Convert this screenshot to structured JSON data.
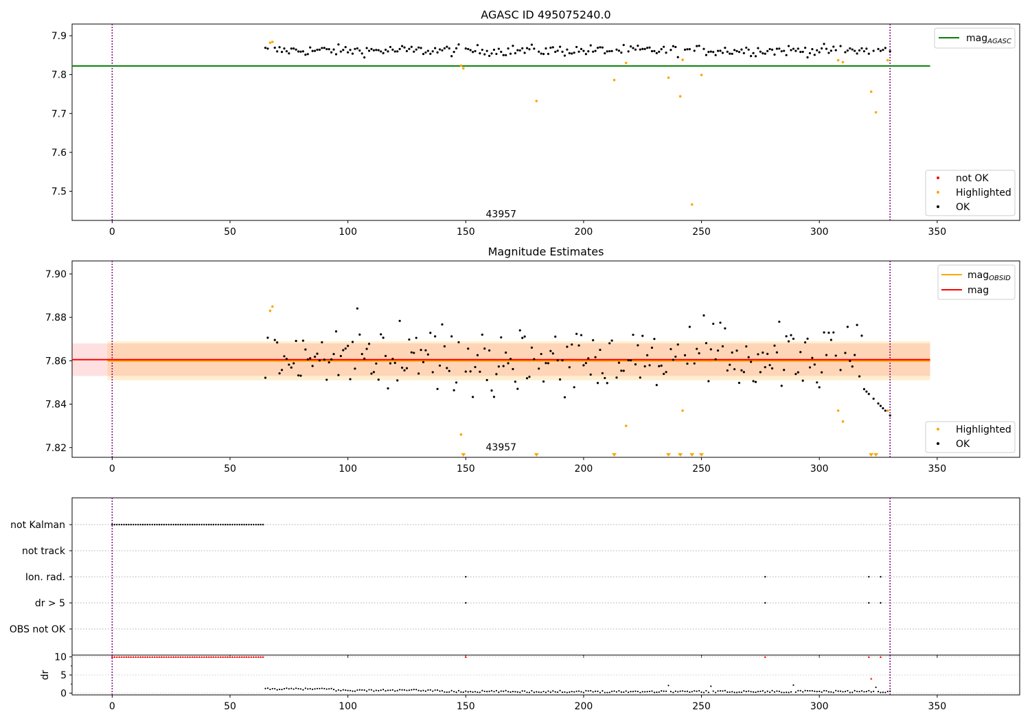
{
  "x_ticks": [
    0,
    50,
    100,
    150,
    200,
    250,
    300,
    350
  ],
  "chart_data": [
    {
      "type": "scatter",
      "title": "AGASC ID 495075240.0",
      "xlim": [
        -17,
        385
      ],
      "ylim": [
        7.425,
        7.93
      ],
      "yticks": [
        7.9,
        7.8,
        7.7,
        7.6,
        7.5
      ],
      "ytick_labels": [
        "7.9",
        "7.8",
        "7.7",
        "7.6",
        "7.5"
      ],
      "vlines": [
        0,
        330
      ],
      "annotation": {
        "text": "43957",
        "x": 165,
        "y": 7.44
      },
      "mag_agasc": 7.822,
      "mag_agasc_xrange": [
        -17,
        347
      ],
      "legend_lines": [
        {
          "label": "mag",
          "sub": "AGASC",
          "color": "#008000"
        }
      ],
      "legend_markers": [
        {
          "label": "not OK",
          "color": "#ff0000"
        },
        {
          "label": "Highlighted",
          "color": "#ffa500"
        },
        {
          "label": "OK",
          "color": "#000000"
        }
      ],
      "highlighted_points": [
        [
          67,
          7.882
        ],
        [
          68,
          7.884
        ],
        [
          148,
          7.823
        ],
        [
          149,
          7.816
        ],
        [
          180,
          7.732
        ],
        [
          213,
          7.786
        ],
        [
          218,
          7.83
        ],
        [
          236,
          7.792
        ],
        [
          241,
          7.744
        ],
        [
          242,
          7.838
        ],
        [
          246,
          7.466
        ],
        [
          250,
          7.799
        ],
        [
          308,
          7.837
        ],
        [
          310,
          7.832
        ],
        [
          322,
          7.756
        ],
        [
          324,
          7.703
        ],
        [
          329,
          7.837
        ]
      ]
    },
    {
      "type": "scatter",
      "title": "Magnitude Estimates",
      "xlim": [
        -17,
        385
      ],
      "ylim": [
        7.8155,
        7.906
      ],
      "yticks": [
        7.9,
        7.88,
        7.86,
        7.84,
        7.82
      ],
      "ytick_labels": [
        "7.90",
        "7.88",
        "7.86",
        "7.84",
        "7.82"
      ],
      "vlines": [
        0,
        330
      ],
      "annotation": {
        "text": "43957",
        "x": 165,
        "y": 7.82
      },
      "mag": 7.8605,
      "mag_band": [
        7.853,
        7.868
      ],
      "mag_obsid": 7.86,
      "mag_obsid_band": [
        7.851,
        7.869
      ],
      "mag_xrange": [
        -17,
        347
      ],
      "legend_lines": [
        {
          "label": "mag",
          "sub": "OBSID",
          "color": "#ffa500"
        },
        {
          "label": "mag",
          "sub": "",
          "color": "#ff0000"
        }
      ],
      "legend_markers": [
        {
          "label": "Highlighted",
          "color": "#ffa500"
        },
        {
          "label": "OK",
          "color": "#000000"
        }
      ],
      "highlighted_points": [
        [
          67,
          7.883
        ],
        [
          68,
          7.885
        ],
        [
          148,
          7.826
        ],
        [
          218,
          7.83
        ],
        [
          242,
          7.837
        ],
        [
          308,
          7.837
        ],
        [
          310,
          7.832
        ],
        [
          329,
          7.837
        ]
      ],
      "off_scale_markers_x": [
        149,
        180,
        213,
        236,
        241,
        246,
        250,
        322,
        324
      ]
    },
    {
      "type": "scatter",
      "title": "",
      "xlim": [
        -17,
        385
      ],
      "categories": [
        "not Kalman",
        "not track",
        "Ion. rad.",
        "dr > 5",
        "OBS not OK"
      ],
      "flags": {
        "not Kalman": {
          "x_from": 0,
          "x_to": 64
        },
        "Ion. rad.": [
          150,
          277,
          321,
          326
        ],
        "dr > 5": [
          150,
          277,
          321,
          326
        ]
      },
      "vlines": [
        0,
        330
      ]
    },
    {
      "type": "scatter",
      "title": "",
      "ylabel": "dr",
      "xlim": [
        -17,
        385
      ],
      "ylim": [
        -0.5,
        10.5
      ],
      "yticks": [
        10,
        5,
        0
      ],
      "ytick_labels": [
        "10",
        "5",
        "0"
      ],
      "vlines": [
        0,
        330
      ],
      "red_flag_points": [
        [
          150,
          10
        ],
        [
          277,
          10
        ],
        [
          321,
          10
        ],
        [
          322,
          4
        ],
        [
          326,
          10
        ]
      ],
      "red_flag_range": [
        0,
        64
      ],
      "special_points": [
        [
          236,
          2.1
        ],
        [
          254,
          1.9
        ],
        [
          289,
          2.2
        ],
        [
          324,
          1.6
        ]
      ]
    }
  ]
}
